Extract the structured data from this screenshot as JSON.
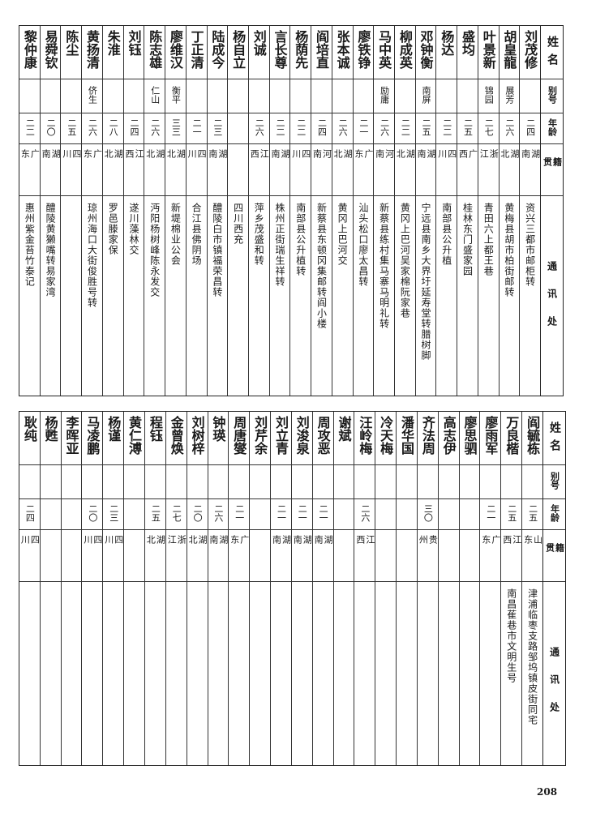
{
  "header": {
    "name": "姓名",
    "alias": "别号",
    "age": "年龄",
    "native": "籍贯",
    "address": "通讯处"
  },
  "tables": [
    {
      "rows": [
        {
          "name": "刘茂修",
          "alias": "",
          "age": "二四",
          "native": "湖南",
          "address": "资兴三都市邮柜转"
        },
        {
          "name": "胡皇龍",
          "alias": "展芳",
          "age": "二六",
          "native": "湖北",
          "address": "黄梅县胡市柏街邮转"
        },
        {
          "name": "叶景新",
          "alias": "锦园",
          "age": "二七",
          "native": "浙江",
          "address": "青田六上都王巷"
        },
        {
          "name": "盛均",
          "alias": "",
          "age": "二五",
          "native": "广西",
          "address": "桂林东门盛家园"
        },
        {
          "name": "杨达",
          "alias": "",
          "age": "二二",
          "native": "四川",
          "address": "南部县公升植"
        },
        {
          "name": "邓钟衡",
          "alias": "南屏",
          "age": "二五",
          "native": "湖南",
          "address": "宁远县南乡大界圩延寿堂转腊树脚"
        },
        {
          "name": "柳成英",
          "alias": "",
          "age": "二二",
          "native": "湖北",
          "address": "黄冈上巴河吴家棉阮家巷"
        },
        {
          "name": "马中英",
          "alias": "励庸",
          "age": "二六",
          "native": "河南",
          "address": "新蔡县练村集马寨马明礼转"
        },
        {
          "name": "廖铁铮",
          "alias": "",
          "age": "二一",
          "native": "广东",
          "address": "汕头松口廖太昌转"
        },
        {
          "name": "张本诚",
          "alias": "",
          "age": "二六",
          "native": "湖北",
          "address": "黄冈上巴河交"
        },
        {
          "name": "阎培直",
          "alias": "",
          "age": "二四",
          "native": "河南",
          "address": "新蔡县东顿冈集邮转阎小楼"
        },
        {
          "name": "杨荫先",
          "alias": "",
          "age": "二二",
          "native": "四川",
          "address": "南部县公升植转"
        },
        {
          "name": "言长尊",
          "alias": "",
          "age": "二二",
          "native": "湖南",
          "address": "株州正街瑞生祥转"
        },
        {
          "name": "刘诚",
          "alias": "",
          "age": "二六",
          "native": "江西",
          "address": "萍乡茂盛和转"
        },
        {
          "name": "杨自立",
          "alias": "",
          "age": "",
          "native": "",
          "address": "四川西充"
        },
        {
          "name": "陆成今",
          "alias": "",
          "age": "二三",
          "native": "湖南",
          "address": "醴陵白市镇福荣昌转"
        },
        {
          "name": "丁正清",
          "alias": "",
          "age": "二一",
          "native": "四川",
          "address": "合江县佛阴场"
        },
        {
          "name": "廖维汉",
          "alias": "衡平",
          "age": "三三",
          "native": "湖北",
          "address": "新堤棉业公会"
        },
        {
          "name": "陈志雄",
          "alias": "仁山",
          "age": "二六",
          "native": "湖北",
          "address": "沔阳杨树峰陈永发交"
        },
        {
          "name": "刘钰",
          "alias": "",
          "age": "二四",
          "native": "江西",
          "address": "遂川藻林交"
        },
        {
          "name": "朱淮",
          "alias": "",
          "age": "二八",
          "native": "湖北",
          "address": "罗邑滕家保"
        },
        {
          "name": "黄扬清",
          "alias": "侪生",
          "age": "二六",
          "native": "广东",
          "address": "琼州海口大街俊胜号转"
        },
        {
          "name": "陈尘",
          "alias": "",
          "age": "二五",
          "native": "四川",
          "address": ""
        },
        {
          "name": "易舜钦",
          "alias": "",
          "age": "二〇",
          "native": "湖南",
          "address": "醴陵黄獭嘴转易家湾"
        },
        {
          "name": "黎仲康",
          "alias": "",
          "age": "二二",
          "native": "广东",
          "address": "惠州紫金苔竹泰记"
        }
      ]
    },
    {
      "rows": [
        {
          "name": "阎毓栋",
          "alias": "",
          "age": "二五",
          "native": "山东",
          "address": "津浦临枣支路邹坞镇皮街同宅"
        },
        {
          "name": "万良楷",
          "alias": "",
          "age": "二五",
          "native": "江西",
          "address": "南昌萑巷市文明生号"
        },
        {
          "name": "廖雨军",
          "alias": "",
          "age": "二一",
          "native": "广东",
          "address": ""
        },
        {
          "name": "廖思驷",
          "alias": "",
          "age": "",
          "native": "",
          "address": ""
        },
        {
          "name": "高志伊",
          "alias": "",
          "age": "",
          "native": "",
          "address": ""
        },
        {
          "name": "齐法周",
          "alias": "",
          "age": "三〇",
          "native": "贵州",
          "address": ""
        },
        {
          "name": "潘华国",
          "alias": "",
          "age": "",
          "native": "",
          "address": ""
        },
        {
          "name": "冷天梅",
          "alias": "",
          "age": "",
          "native": "",
          "address": ""
        },
        {
          "name": "汪岭梅",
          "alias": "",
          "age": "二六",
          "native": "江西",
          "address": ""
        },
        {
          "name": "谢斌",
          "alias": "",
          "age": "",
          "native": "",
          "address": ""
        },
        {
          "name": "周攻恶",
          "alias": "",
          "age": "二一",
          "native": "湖南",
          "address": ""
        },
        {
          "name": "刘浚泉",
          "alias": "",
          "age": "二一",
          "native": "湖南",
          "address": ""
        },
        {
          "name": "刘立青",
          "alias": "",
          "age": "二一",
          "native": "湖南",
          "address": ""
        },
        {
          "name": "刘芹余",
          "alias": "",
          "age": "",
          "native": "",
          "address": ""
        },
        {
          "name": "周唐燮",
          "alias": "",
          "age": "二一",
          "native": "广东",
          "address": ""
        },
        {
          "name": "钟瑛",
          "alias": "",
          "age": "二六",
          "native": "湖南",
          "address": ""
        },
        {
          "name": "刘树梓",
          "alias": "",
          "age": "二〇",
          "native": "湖北",
          "address": ""
        },
        {
          "name": "金曾焕",
          "alias": "",
          "age": "二七",
          "native": "浙江",
          "address": ""
        },
        {
          "name": "程钰",
          "alias": "",
          "age": "二五",
          "native": "湖北",
          "address": ""
        },
        {
          "name": "黄仁溥",
          "alias": "",
          "age": "",
          "native": "",
          "address": ""
        },
        {
          "name": "杨谨",
          "alias": "",
          "age": "二三",
          "native": "四川",
          "address": ""
        },
        {
          "name": "马凌鹏",
          "alias": "",
          "age": "二〇",
          "native": "四川",
          "address": ""
        },
        {
          "name": "李晖亚",
          "alias": "",
          "age": "",
          "native": "",
          "address": ""
        },
        {
          "name": "杨甦",
          "alias": "",
          "age": "",
          "native": "",
          "address": ""
        },
        {
          "name": "耿纯",
          "alias": "",
          "age": "二四",
          "native": "四川",
          "address": ""
        }
      ]
    }
  ],
  "page_number": "208"
}
